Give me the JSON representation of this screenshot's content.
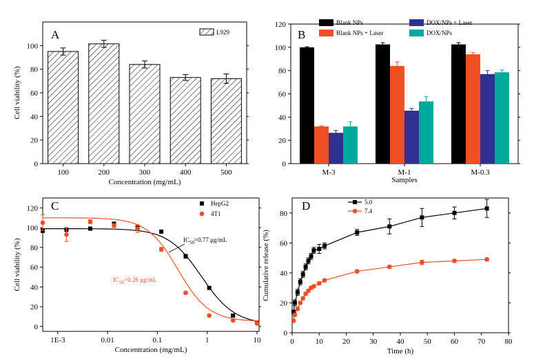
{
  "chart_data": [
    {
      "panel": "A",
      "type": "bar",
      "label": "A",
      "xlabel": "Concentration (mg/mL)",
      "ylabel": "Cell viability (%)",
      "ylim": [
        0,
        120
      ],
      "yticks": [
        "0",
        "20",
        "40",
        "60",
        "80",
        "100"
      ],
      "categories": [
        "100",
        "200",
        "300",
        "400",
        "500"
      ],
      "series": [
        {
          "name": "L929",
          "values": [
            95,
            101.5,
            84,
            73,
            72
          ],
          "errors": [
            3,
            3,
            3,
            2.5,
            4
          ]
        }
      ],
      "legend": "top-right"
    },
    {
      "panel": "B",
      "type": "bar",
      "label": "B",
      "xlabel": "Samples",
      "ylabel": "",
      "ylim": [
        0,
        120
      ],
      "yticks": [
        "0",
        "20",
        "40",
        "60",
        "80",
        "100",
        "120"
      ],
      "categories": [
        "M-3",
        "M-1",
        "M-0.3"
      ],
      "series": [
        {
          "name": "Blank NPs",
          "color": "#000000",
          "values": [
            100,
            102.5,
            102.5
          ],
          "errors": [
            0.5,
            1.5,
            1.5
          ]
        },
        {
          "name": "Blank NPs + Laser",
          "color": "#f04e23",
          "values": [
            32,
            84,
            94
          ],
          "errors": [
            0.5,
            3.5,
            1.5
          ]
        },
        {
          "name": "DOX/NPs + Laser",
          "color": "#2e3192",
          "values": [
            26.5,
            45.5,
            77
          ],
          "errors": [
            2,
            2,
            3
          ]
        },
        {
          "name": "DOX/NPs",
          "color": "#00a99d",
          "values": [
            32,
            53.5,
            78.5
          ],
          "errors": [
            4,
            4,
            2
          ]
        }
      ],
      "legend": "top"
    },
    {
      "panel": "C",
      "type": "scatter",
      "label": "C",
      "xlabel": "Concentration (mg/mL)",
      "ylabel": "Cell viability (%)",
      "xscale": "log",
      "xlim": [
        0.0005,
        11
      ],
      "ylim": [
        -5,
        130
      ],
      "xticks": [
        {
          "v": 0.001,
          "t": "1E-3"
        },
        {
          "v": 0.01,
          "t": "0.01"
        },
        {
          "v": 0.1,
          "t": "0.1"
        },
        {
          "v": 1,
          "t": "1"
        },
        {
          "v": 10,
          "t": "10"
        }
      ],
      "yticks": [
        "0",
        "20",
        "40",
        "60",
        "80",
        "100",
        "120"
      ],
      "series": [
        {
          "name": "HepG2",
          "color": "#000000",
          "marker": "square",
          "x": [
            0.0005,
            0.0015,
            0.0045,
            0.0135,
            0.04,
            0.12,
            0.37,
            1.1,
            3.3,
            10
          ],
          "y": [
            97,
            98,
            99,
            104,
            100,
            96,
            71,
            39,
            11,
            4
          ],
          "errors": [
            2,
            2,
            1,
            1.5,
            2,
            1,
            2,
            1.5,
            1,
            1
          ],
          "fit": {
            "top": 99,
            "bottom": 2,
            "ic50": 0.77,
            "hill": 1.3
          }
        },
        {
          "name": "4T1",
          "color": "#f04e23",
          "marker": "circle",
          "x": [
            0.0005,
            0.0015,
            0.0045,
            0.0135,
            0.04,
            0.12,
            0.37,
            1.1,
            3.3,
            10
          ],
          "y": [
            105,
            93,
            106,
            102,
            99,
            78,
            34,
            11,
            6,
            3
          ],
          "errors": [
            8,
            7,
            2,
            2,
            4,
            2,
            1,
            1,
            1,
            1
          ],
          "fit": {
            "top": 110,
            "bottom": 5,
            "ic50": 0.26,
            "hill": 1.4
          }
        }
      ],
      "annotations": [
        {
          "color": "#000000",
          "pre": "IC",
          "sub": "50",
          "post": "=0.77 μg/mL"
        },
        {
          "color": "#f04e23",
          "pre": "IC",
          "sub": "50",
          "post": "=0.26 μg/mL"
        }
      ],
      "legend": "top-right"
    },
    {
      "panel": "D",
      "type": "line",
      "label": "D",
      "xlabel": "Time (h)",
      "ylabel": "Cumulative release (%)",
      "xlim": [
        0,
        80
      ],
      "ylim": [
        0,
        90
      ],
      "xticks": [
        "0",
        "10",
        "20",
        "30",
        "40",
        "50",
        "60",
        "70",
        "80"
      ],
      "yticks": [
        "0",
        "20",
        "40",
        "60",
        "80"
      ],
      "series": [
        {
          "name": "5.0",
          "color": "#000000",
          "marker": "square",
          "x": [
            0.5,
            1,
            2,
            3,
            4,
            5,
            6,
            7,
            8,
            10,
            12,
            24,
            36,
            48,
            60,
            72
          ],
          "y": [
            14,
            20,
            27,
            34,
            39,
            44,
            48,
            51,
            55,
            56,
            58,
            67,
            71,
            77,
            80,
            83
          ],
          "errors": [
            1,
            2,
            2,
            2,
            2,
            2,
            2,
            2,
            2,
            3,
            2,
            2,
            5,
            6,
            4,
            6
          ]
        },
        {
          "name": "7.4",
          "color": "#f04e23",
          "marker": "circle",
          "x": [
            0.5,
            1,
            2,
            3,
            4,
            5,
            6,
            7,
            8,
            10,
            12,
            24,
            36,
            48,
            60,
            72
          ],
          "y": [
            8,
            12,
            16,
            20,
            23,
            26,
            28,
            30,
            31,
            33,
            35,
            41,
            44,
            47,
            48,
            49
          ],
          "errors": [
            1,
            1,
            1,
            1,
            1,
            1,
            1,
            1,
            1,
            1,
            1,
            1,
            1,
            1.5,
            1,
            1
          ]
        }
      ],
      "legend": "top-left"
    }
  ]
}
